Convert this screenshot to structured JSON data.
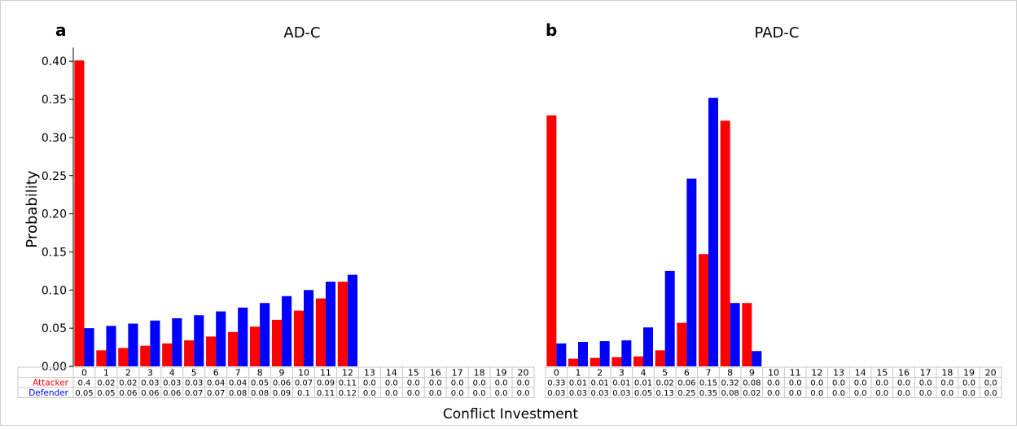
{
  "figure": {
    "xlabel": "Conflict Investment",
    "ylabel": "Probability"
  },
  "chart_data": [
    {
      "type": "bar",
      "panel_letter": "a",
      "title": "AD-C",
      "categories": [
        "0",
        "1",
        "2",
        "3",
        "4",
        "5",
        "6",
        "7",
        "8",
        "9",
        "10",
        "11",
        "12",
        "13",
        "14",
        "15",
        "16",
        "17",
        "18",
        "19",
        "20"
      ],
      "ylim": [
        0,
        0.42
      ],
      "yticks": [
        "0.00",
        "0.05",
        "0.10",
        "0.15",
        "0.20",
        "0.25",
        "0.30",
        "0.35",
        "0.40"
      ],
      "grid": false,
      "series": [
        {
          "name": "Attacker",
          "color": "#ff0000",
          "values": [
            0.401,
            0.021,
            0.024,
            0.027,
            0.03,
            0.034,
            0.039,
            0.045,
            0.052,
            0.061,
            0.073,
            0.089,
            0.111,
            0,
            0,
            0,
            0,
            0,
            0,
            0,
            0
          ],
          "labels": [
            "0.4",
            "0.02",
            "0.02",
            "0.03",
            "0.03",
            "0.03",
            "0.04",
            "0.04",
            "0.05",
            "0.06",
            "0.07",
            "0.09",
            "0.11",
            "0.0",
            "0.0",
            "0.0",
            "0.0",
            "0.0",
            "0.0",
            "0.0",
            "0.0"
          ]
        },
        {
          "name": "Defender",
          "color": "#0000ff",
          "values": [
            0.05,
            0.053,
            0.056,
            0.06,
            0.063,
            0.067,
            0.072,
            0.077,
            0.083,
            0.092,
            0.1,
            0.111,
            0.12,
            0,
            0,
            0,
            0,
            0,
            0,
            0,
            0
          ],
          "labels": [
            "0.05",
            "0.05",
            "0.06",
            "0.06",
            "0.06",
            "0.07",
            "0.07",
            "0.08",
            "0.08",
            "0.09",
            "0.1",
            "0.11",
            "0.12",
            "0.0",
            "0.0",
            "0.0",
            "0.0",
            "0.0",
            "0.0",
            "0.0",
            "0.0"
          ]
        }
      ]
    },
    {
      "type": "bar",
      "panel_letter": "b",
      "title": "PAD-C",
      "categories": [
        "0",
        "1",
        "2",
        "3",
        "4",
        "5",
        "6",
        "7",
        "8",
        "9",
        "10",
        "11",
        "12",
        "13",
        "14",
        "15",
        "16",
        "17",
        "18",
        "19",
        "20"
      ],
      "ylim": [
        0,
        0.42
      ],
      "grid": false,
      "series": [
        {
          "name": "Attacker",
          "color": "#ff0000",
          "values": [
            0.329,
            0.01,
            0.011,
            0.012,
            0.013,
            0.021,
            0.057,
            0.147,
            0.322,
            0.083,
            0,
            0,
            0,
            0,
            0,
            0,
            0,
            0,
            0,
            0,
            0
          ],
          "labels": [
            "0.33",
            "0.01",
            "0.01",
            "0.01",
            "0.01",
            "0.02",
            "0.06",
            "0.15",
            "0.32",
            "0.08",
            "0.0",
            "0.0",
            "0.0",
            "0.0",
            "0.0",
            "0.0",
            "0.0",
            "0.0",
            "0.0",
            "0.0",
            "0.0"
          ]
        },
        {
          "name": "Defender",
          "color": "#0000ff",
          "values": [
            0.03,
            0.032,
            0.033,
            0.034,
            0.051,
            0.125,
            0.246,
            0.352,
            0.083,
            0.02,
            0,
            0,
            0,
            0,
            0,
            0,
            0,
            0,
            0,
            0,
            0
          ],
          "labels": [
            "0.03",
            "0.03",
            "0.03",
            "0.03",
            "0.05",
            "0.13",
            "0.25",
            "0.35",
            "0.08",
            "0.02",
            "0.0",
            "0.0",
            "0.0",
            "0.0",
            "0.0",
            "0.0",
            "0.0",
            "0.0",
            "0.0",
            "0.0",
            "0.0"
          ]
        }
      ]
    }
  ]
}
